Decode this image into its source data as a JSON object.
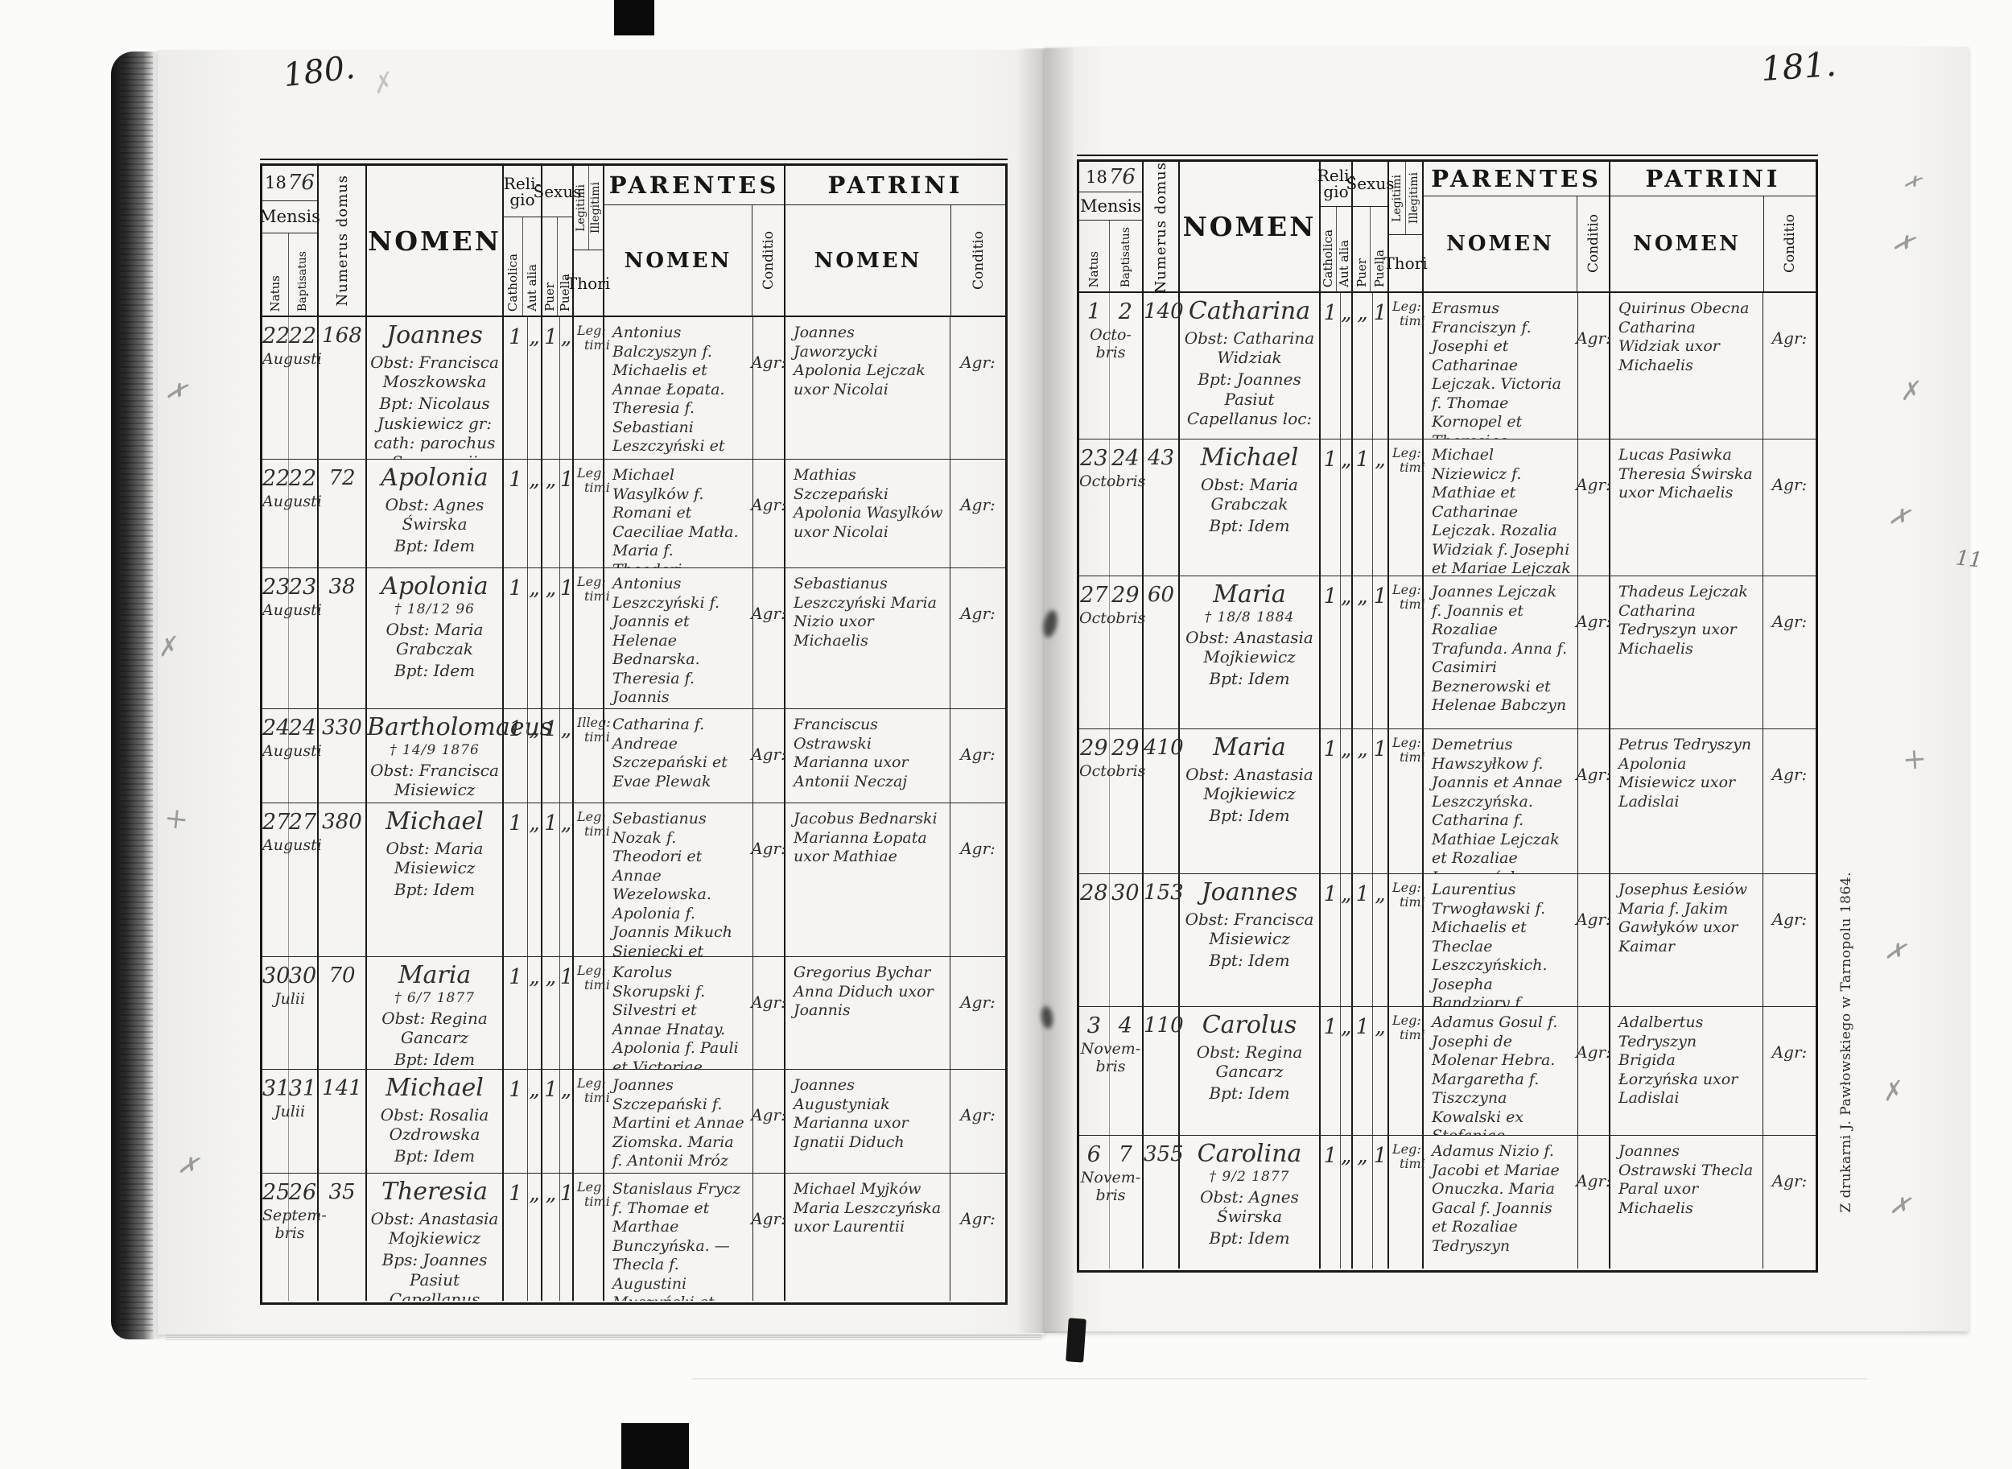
{
  "header": {
    "mensis": "Mensis",
    "natus": "Natus",
    "baptisatus": "Baptisatus",
    "numerus_domus": "Numerus domus",
    "nomen": "NOMEN",
    "religio_l1": "Reli-",
    "religio_l2": "gio",
    "sexus": "Sexus",
    "catholica": "Catholica",
    "aut_alia": "Aut alia",
    "puer": "Puer",
    "puella": "Puella",
    "legitimi": "Legitimi",
    "illegitimi": "Illegitimi",
    "thori": "Thori",
    "parentes": "PARENTES",
    "patrini": "PATRINI",
    "nomen_sub": "NOMEN",
    "conditio": "Conditio"
  },
  "annotations": {
    "x_mark": "✗",
    "plus_mark": "+",
    "margin_note": "11"
  },
  "pages": [
    {
      "page_number": "180.",
      "year_printed": "18",
      "year_written": "76",
      "rows": [
        {
          "natus": "22",
          "bapt": "22",
          "month": "Augusti",
          "house": "168",
          "name": "Joannes",
          "death": "",
          "obst": "Obst: Francisca Moszkowska",
          "bpt": "Bpt: Nicolaus Juskiewicz gr: cath: parochus Susczyncii",
          "rel_c": "1",
          "rel_a": "„",
          "sex_m": "1",
          "sex_f": "„",
          "thori1": "Leg:",
          "thori2": "timi",
          "parentes": "Antonius Balczyszyn f. Michaelis et Annae Łopata. Theresia f. Sebastiani Leszczyński et Theclae Grabczak",
          "par_cond": "Agr:",
          "patrini": "Joannes Jaworzycki Apolonia Lejczak uxor Nicolai",
          "pat_cond": "Agr:"
        },
        {
          "natus": "22",
          "bapt": "22",
          "month": "Augusti",
          "house": "72",
          "name": "Apolonia",
          "death": "",
          "obst": "Obst: Agnes Świrska",
          "bpt": "Bpt: Idem",
          "rel_c": "1",
          "rel_a": "„",
          "sex_m": "„",
          "sex_f": "1",
          "thori1": "Leg:",
          "thori2": "timi",
          "parentes": "Michael Wasylków f. Romani et Caeciliae Matła. Maria f. Theodori Petrowicz et Annae Kobel",
          "par_cond": "Agr:",
          "patrini": "Mathias Szczepański Apolonia Wasylków uxor Nicolai",
          "pat_cond": "Agr:"
        },
        {
          "natus": "23",
          "bapt": "23",
          "month": "Augusti",
          "house": "38",
          "name": "Apolonia",
          "death": "† 18/12 96",
          "obst": "Obst: Maria Grabczak",
          "bpt": "Bpt: Idem",
          "rel_c": "1",
          "rel_a": "„",
          "sex_m": "„",
          "sex_f": "1",
          "thori1": "Leg:",
          "thori2": "timi",
          "parentes": "Antonius Leszczyński f. Joannis et Helenae Bednarska. Theresia f. Joannis Grabczak et Mariae Ziółkowska",
          "par_cond": "Agr:",
          "patrini": "Sebastianus Leszczyński Maria Nizio uxor Michaelis",
          "pat_cond": "Agr:"
        },
        {
          "natus": "24",
          "bapt": "24",
          "month": "Augusti",
          "house": "330",
          "name": "Bartholomaeus",
          "death": "† 14/9 1876",
          "obst": "Obst: Francisca Misiewicz",
          "bpt": "Bpt: Idem",
          "rel_c": "1",
          "rel_a": "„",
          "sex_m": "1",
          "sex_f": "„",
          "thori1": "Illeg:",
          "thori2": "timi",
          "parentes": "Catharina f. Andreae Szczepański et Evae Plewak",
          "par_cond": "Agr:",
          "patrini": "Franciscus Ostrawski Marianna uxor Antonii Neczaj",
          "pat_cond": "Agr:"
        },
        {
          "natus": "27",
          "bapt": "27",
          "month": "Augusti",
          "house": "380",
          "name": "Michael",
          "death": "",
          "obst": "Obst: Maria Misiewicz",
          "bpt": "Bpt: Idem",
          "rel_c": "1",
          "rel_a": "„",
          "sex_m": "1",
          "sex_f": "„",
          "thori1": "Leg:",
          "thori2": "timi",
          "parentes": "Sebastianus Nozak f. Theodori et Annae Wezelowska. Apolonia f. Joannis Mikuch Sieniecki et Evae Konopka",
          "par_cond": "Agr:",
          "patrini": "Jacobus Bednarski Marianna Łopata uxor Mathiae",
          "pat_cond": "Agr:"
        },
        {
          "natus": "30",
          "bapt": "30",
          "month": "Julii",
          "house": "70",
          "name": "Maria",
          "death": "† 6/7 1877",
          "obst": "Obst: Regina Gancarz",
          "bpt": "Bpt: Idem",
          "rel_c": "1",
          "rel_a": "„",
          "sex_m": "„",
          "sex_f": "1",
          "thori1": "Leg:",
          "thori2": "timi",
          "parentes": "Karolus Skorupski f. Silvestri et Annae Hnatay. Apolonia f. Pauli et Victoriae Lejczak",
          "par_cond": "Agr:",
          "patrini": "Gregorius Bychar Anna Diduch uxor Joannis",
          "pat_cond": "Agr:"
        },
        {
          "natus": "31",
          "bapt": "31",
          "month": "Julii",
          "house": "141",
          "name": "Michael",
          "death": "",
          "obst": "Obst: Rosalia Ozdrowska",
          "bpt": "Bpt: Idem",
          "rel_c": "1",
          "rel_a": "„",
          "sex_m": "1",
          "sex_f": "„",
          "thori1": "Leg:",
          "thori2": "timi",
          "parentes": "Joannes Szczepański f. Martini et Annae Ziomska. Maria f. Antonii Mróz et Constantiae Skorupska",
          "par_cond": "Agr:",
          "patrini": "Joannes Augustyniak Marianna uxor Ignatii Diduch",
          "pat_cond": "Agr:"
        },
        {
          "natus": "25",
          "bapt": "26",
          "month": "Septem- bris",
          "house": "35",
          "name": "Theresia",
          "death": "",
          "obst": "Obst: Anastasia Mojkiewicz",
          "bpt": "Bps: Joannes Pasiut Capellanus",
          "rel_c": "1",
          "rel_a": "„",
          "sex_m": "„",
          "sex_f": "1",
          "thori1": "Leg:",
          "thori2": "timi",
          "parentes": "Stanislaus Frycz f. Thomae et Marthae Bunczyńska. — Thecla f. Augustini Muszyński et Rozaliae Myjków",
          "par_cond": "Agr:",
          "patrini": "Michael Myjków Maria Leszczyńska uxor Laurentii",
          "pat_cond": "Agr:"
        }
      ]
    },
    {
      "page_number": "181.",
      "year_printed": "18",
      "year_written": "76",
      "printer_imprint": "Z drukarni J. Pawłowskiego w Tarnopolu 1864.",
      "rows": [
        {
          "natus": "1",
          "bapt": "2",
          "month": "Octo- bris",
          "house": "140",
          "name": "Catharina",
          "death": "",
          "obst": "Obst: Catharina Widziak",
          "bpt": "Bpt: Joannes Pasiut Capellanus loc:",
          "rel_c": "1",
          "rel_a": "„",
          "sex_m": "„",
          "sex_f": "1",
          "thori1": "Leg:",
          "thori2": "timi",
          "parentes": "Erasmus Franciszyn f. Josephi et Catharinae Lejczak. Victoria f. Thomae Kornopel et Theresiae Świrska",
          "par_cond": "Agr:",
          "patrini": "Quirinus Obecna Catharina Widziak uxor Michaelis",
          "pat_cond": "Agr:"
        },
        {
          "natus": "23",
          "bapt": "24",
          "month": "Octobris",
          "house": "43",
          "name": "Michael",
          "death": "",
          "obst": "Obst: Maria Grabczak",
          "bpt": "Bpt: Idem",
          "rel_c": "1",
          "rel_a": "„",
          "sex_m": "1",
          "sex_f": "„",
          "thori1": "Leg:",
          "thori2": "timi",
          "parentes": "Michael Niziewicz f. Mathiae et Catharinae Lejczak. Rozalia Widziak f. Josephi et Mariae Lejczak",
          "par_cond": "Agr:",
          "patrini": "Lucas Pasiwka Theresia Świrska uxor Michaelis",
          "pat_cond": "Agr:"
        },
        {
          "natus": "27",
          "bapt": "29",
          "month": "Octobris",
          "house": "60",
          "name": "Maria",
          "death": "† 18/8 1884",
          "obst": "Obst: Anastasia Mojkiewicz",
          "bpt": "Bpt: Idem",
          "rel_c": "1",
          "rel_a": "„",
          "sex_m": "„",
          "sex_f": "1",
          "thori1": "Leg:",
          "thori2": "timi",
          "parentes": "Joannes Lejczak f. Joannis et Rozaliae Trafunda. Anna f. Casimiri Beznerowski et Helenae Babczyn",
          "par_cond": "Agr:",
          "patrini": "Thadeus Lejczak Catharina Tedryszyn uxor Michaelis",
          "pat_cond": "Agr:"
        },
        {
          "natus": "29",
          "bapt": "29",
          "month": "Octobris",
          "house": "410",
          "name": "Maria",
          "death": "",
          "obst": "Obst: Anastasia Mojkiewicz",
          "bpt": "Bpt: Idem",
          "rel_c": "1",
          "rel_a": "„",
          "sex_m": "„",
          "sex_f": "1",
          "thori1": "Leg:",
          "thori2": "timi",
          "parentes": "Demetrius Hawszyłkow f. Joannis et Annae Leszczyńska. Catharina f. Mathiae Lejczak et Rozaliae Leszczyńska",
          "par_cond": "Agr:",
          "patrini": "Petrus Tedryszyn Apolonia Misiewicz uxor Ladislai",
          "pat_cond": "Agr:"
        },
        {
          "natus": "28",
          "bapt": "30",
          "month": "",
          "house": "153",
          "name": "Joannes",
          "death": "",
          "obst": "Obst: Francisca Misiewicz",
          "bpt": "Bpt: Idem",
          "rel_c": "1",
          "rel_a": "„",
          "sex_m": "1",
          "sex_f": "„",
          "thori1": "Leg:",
          "thori2": "timi",
          "parentes": "Laurentius Trwogławski f. Michaelis et Theclae Leszczyńskich. Josepha Bandziory f. Josephi et Mariae Lejczak",
          "par_cond": "Agr:",
          "patrini": "Josephus Łesiów Maria f. Jakim Gawłyków uxor Kaimar",
          "pat_cond": "Agr:"
        },
        {
          "natus": "3",
          "bapt": "4",
          "month": "Novem- bris",
          "house": "110",
          "name": "Carolus",
          "death": "",
          "obst": "Obst: Regina Gancarz",
          "bpt": "Bpt: Idem",
          "rel_c": "1",
          "rel_a": "„",
          "sex_m": "1",
          "sex_f": "„",
          "thori1": "Leg:",
          "thori2": "timi",
          "parentes": "Adamus Gosul f. Josephi de Molenar Hebra. Margaretha f. Tiszczyna Kowalski ex Stefaniae Trupacz",
          "par_cond": "Agr:",
          "patrini": "Adalbertus Tedryszyn Brigida Łorzyńska uxor Ladislai",
          "pat_cond": "Agr:"
        },
        {
          "natus": "6",
          "bapt": "7",
          "month": "Novem- bris",
          "house": "355",
          "name": "Carolina",
          "death": "† 9/2 1877",
          "obst": "Obst: Agnes Świrska",
          "bpt": "Bpt: Idem",
          "rel_c": "1",
          "rel_a": "„",
          "sex_m": "„",
          "sex_f": "1",
          "thori1": "Leg:",
          "thori2": "timi",
          "parentes": "Adamus Nizio f. Jacobi et Mariae Onuczka. Maria Gacal f. Joannis et Rozaliae Tedryszyn",
          "par_cond": "Agr:",
          "patrini": "Joannes Ostrawski Thecla Paral uxor Michaelis",
          "pat_cond": "Agr:"
        }
      ]
    }
  ]
}
